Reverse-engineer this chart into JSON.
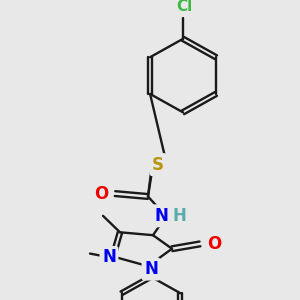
{
  "bg_color": "#e8e8e8",
  "line_color": "#1a1a1a",
  "lw": 1.7,
  "colors": {
    "Cl": "#3cb843",
    "S": "#b8960c",
    "O": "#ee0000",
    "N": "#0000ee",
    "H": "#5aacac",
    "C": "#1a1a1a"
  },
  "fs": 10.5
}
